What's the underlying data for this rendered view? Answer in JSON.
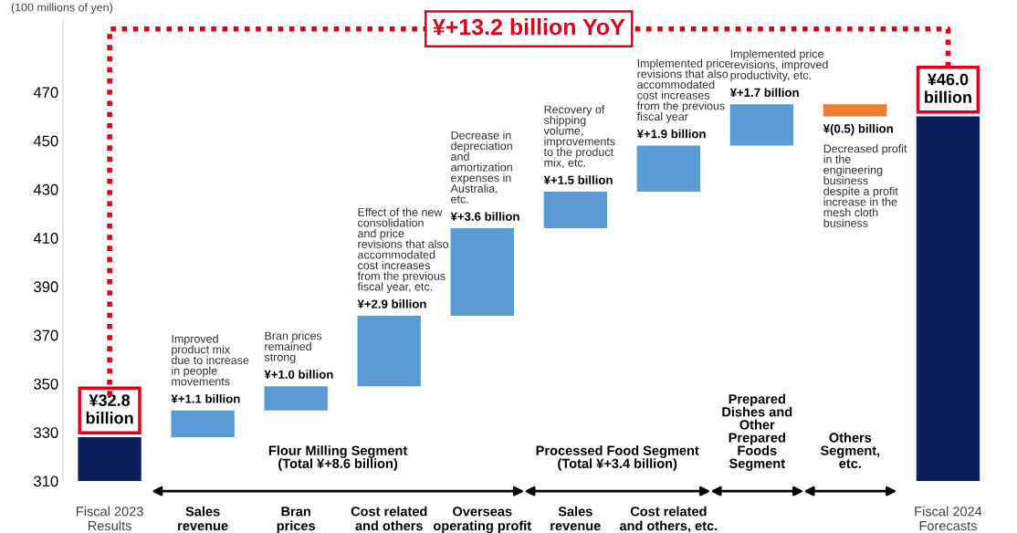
{
  "chart_data": {
    "type": "bar",
    "categories": [
      "Fiscal 2023\nResults",
      "Sales\nrevenue",
      "Bran\nprices",
      "Cost related\nand others",
      "Overseas\noperating profit",
      "Sales\nrevenue",
      "Cost related\nand others, etc.",
      null,
      null,
      "Fiscal 2024\nForecasts"
    ],
    "values": [
      328,
      11,
      10,
      29,
      36,
      15,
      19,
      17,
      -5,
      460
    ],
    "base": [
      0,
      328,
      339,
      349,
      378,
      414,
      429,
      448,
      465,
      0
    ],
    "colors": [
      "#0c1f5e",
      "#5b9bd5",
      "#5b9bd5",
      "#5b9bd5",
      "#5b9bd5",
      "#5b9bd5",
      "#5b9bd5",
      "#5b9bd5",
      "#ed7d31",
      "#0c1f5e"
    ],
    "ylabel": "(100 millions of yen)",
    "ylim": [
      310,
      500
    ],
    "yticks": [
      310,
      330,
      350,
      370,
      390,
      410,
      430,
      450,
      470
    ],
    "annotations": [
      "¥+13.2 billion YoY",
      "Improved\nproduct mix\ndue to increase\nin people\nmovements",
      "Bran prices\nremained\nstrong",
      "Effect of the new\nconsolidation\nand price\nrevisions that also\naccommodated\ncost increases\nfrom the previous\nfiscal year, etc.",
      "Decrease in\ndepreciation\nand\namortization\nexpenses in\nAustralia,\netc.",
      "Recovery of\nshipping\nvolume,\nimprovements\nto the product\nmix, etc.",
      "Implemented price\nrevisions that also\naccommodated\ncost increases\nfrom the previous\nfiscal year",
      "Implemented price\nrevisions, improved\nproductivity, etc.",
      "Decreased profit\nin the\nengineering\nbusiness\ndespite a profit\nincrease in the\nmesh cloth\nbusiness",
      "Flour Milling Segment\n(Total ¥+8.6 billion)",
      "Processed Food Segment\n(Total ¥+3.4 billion)",
      "Prepared\nDishes and\nOther\nPrepared\nFoods\nSegment",
      "Others\nSegment,\netc.",
      "¥32.8\nbillion",
      "¥+1.1 billion",
      "¥+1.0 billion",
      "¥+2.9 billion",
      "¥+3.6 billion",
      "¥+1.5 billion",
      "¥+1.9 billion",
      "¥+1.7 billion",
      "¥(0.5) billion",
      "¥46.0\nbillion"
    ]
  }
}
